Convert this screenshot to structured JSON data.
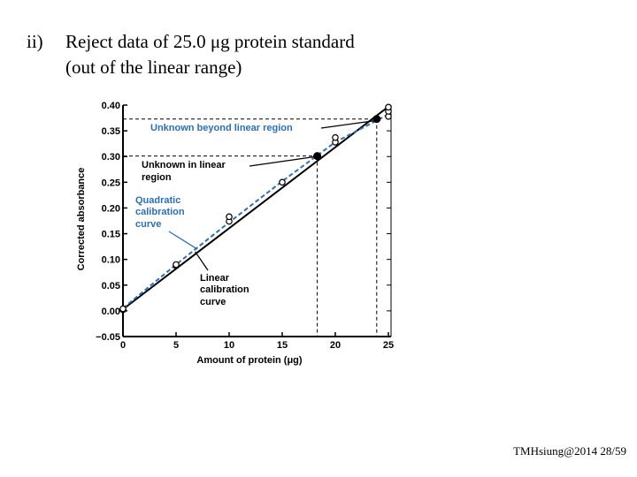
{
  "slide": {
    "heading_number": "ii)",
    "heading_line1": "Reject data of 25.0 μg protein standard",
    "heading_line2": "(out of the linear range)",
    "footer": "TMHsiung@2014 28/59"
  },
  "chart_data": {
    "type": "line",
    "xlabel": "Amount of protein (μg)",
    "ylabel": "Corrected absorbance",
    "xlim": [
      0,
      25
    ],
    "ylim": [
      -0.05,
      0.4
    ],
    "x_ticks": [
      0,
      5,
      10,
      15,
      20,
      25
    ],
    "y_ticks": [
      -0.05,
      0.0,
      0.05,
      0.1,
      0.15,
      0.2,
      0.25,
      0.3,
      0.35,
      0.4
    ],
    "x_tick_labels": [
      "0",
      "5",
      "10",
      "15",
      "20",
      "25"
    ],
    "y_tick_labels": [
      "−0.05",
      "0.00",
      "0.05",
      "0.10",
      "0.15",
      "0.20",
      "0.25",
      "0.30",
      "0.35",
      "0.40"
    ],
    "series": [
      {
        "name": "Linear calibration curve",
        "kind": "line",
        "color": "#000000",
        "x": [
          0,
          25
        ],
        "y": [
          0.003,
          0.397
        ]
      },
      {
        "name": "Quadratic calibration curve",
        "kind": "dashed",
        "color": "#2a6fb8",
        "x": [
          0,
          5,
          10,
          15,
          20,
          25
        ],
        "y": [
          0.005,
          0.09,
          0.172,
          0.252,
          0.328,
          0.382
        ]
      }
    ],
    "standards": {
      "x": [
        0,
        0,
        0,
        5,
        5,
        10,
        10,
        15,
        20,
        20,
        25,
        25,
        25
      ],
      "y": [
        0.002,
        0.003,
        0.004,
        0.088,
        0.09,
        0.174,
        0.183,
        0.25,
        0.328,
        0.337,
        0.378,
        0.388,
        0.396
      ]
    },
    "unknowns": [
      {
        "x": 18.3,
        "y": 0.301
      },
      {
        "x": 23.9,
        "y": 0.373
      }
    ],
    "annotations": {
      "beyond": "Unknown beyond linear region",
      "in_region_1": "Unknown in linear",
      "in_region_2": "region",
      "quadratic_1": "Quadratic",
      "quadratic_2": "calibration",
      "quadratic_3": "curve",
      "linear_1": "Linear",
      "linear_2": "calibration",
      "linear_3": "curve"
    },
    "colors": {
      "blue": "#2a6fb8",
      "black": "#000000"
    }
  }
}
